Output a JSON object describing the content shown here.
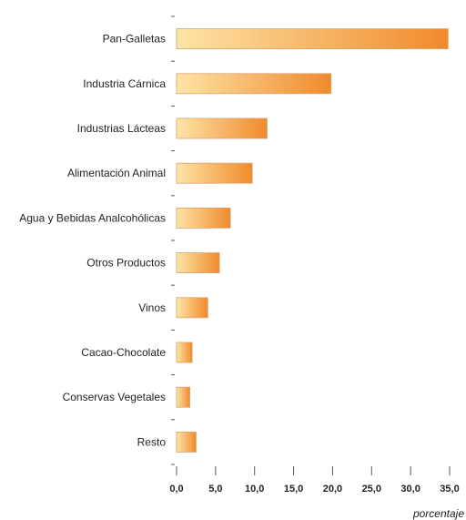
{
  "chart_data": {
    "type": "bar",
    "orientation": "horizontal",
    "categories": [
      "Pan-Galletas",
      "Industria Cárnica",
      "Industrias Lácteas",
      "Alimentación Animal",
      "Agua y Bebidas Analcohólicas",
      "Otros Productos",
      "Vinos",
      "Cacao-Chocolate",
      "Conservas Vegetales",
      "Resto"
    ],
    "values": [
      34.8,
      19.8,
      11.6,
      9.7,
      6.9,
      5.5,
      4.0,
      2.0,
      1.7,
      2.5
    ],
    "xlim": [
      0,
      35
    ],
    "xticks": [
      0,
      5,
      10,
      15,
      20,
      25,
      30,
      35
    ],
    "xtick_labels": [
      "0,0",
      "5,0",
      "10,0",
      "15,0",
      "20,0",
      "25,0",
      "30,0",
      "35,0"
    ],
    "xlabel": "porcentaje",
    "ylabel": "",
    "title": "",
    "grid": false,
    "colors": {
      "bar_start": "#fde4a6",
      "bar_end": "#f08a2c",
      "bar_stroke": "#d9a470",
      "axis": "#555555"
    }
  }
}
